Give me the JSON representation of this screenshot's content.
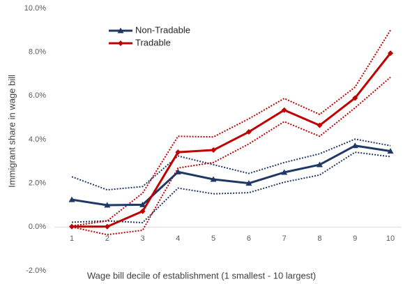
{
  "chart_data": {
    "type": "line",
    "y_label": "Immigrant share in wage bill",
    "x_label": "Wage bill decile of establishment (1 smallest - 10 largest)",
    "categories": [
      "1",
      "2",
      "3",
      "4",
      "5",
      "6",
      "7",
      "8",
      "9",
      "10"
    ],
    "ylim": [
      -2,
      10
    ],
    "yticks": [
      {
        "value": -2,
        "label": "-2.0%"
      },
      {
        "value": 0,
        "label": "0.0%"
      },
      {
        "value": 2,
        "label": "2.0%"
      },
      {
        "value": 4,
        "label": "4.0%"
      },
      {
        "value": 6,
        "label": "6.0%"
      },
      {
        "value": 8,
        "label": "8.0%"
      },
      {
        "value": 10,
        "label": "10.0%"
      }
    ],
    "grid": false,
    "legend": "upper-left",
    "series": [
      {
        "color": "#1f3864",
        "style": "dotted",
        "values": [
          2.3,
          1.7,
          1.85,
          3.25,
          2.85,
          2.45,
          2.95,
          3.35,
          4.02,
          3.72
        ]
      },
      {
        "color": "#1f3864",
        "style": "dotted",
        "values": [
          0.22,
          0.28,
          0.2,
          1.78,
          1.52,
          1.57,
          2.05,
          2.38,
          3.42,
          3.22
        ]
      },
      {
        "color": "#c00000",
        "style": "dotted",
        "values": [
          0.05,
          0.28,
          1.55,
          4.15,
          4.12,
          4.95,
          5.88,
          5.15,
          6.4,
          9.0
        ]
      },
      {
        "color": "#c00000",
        "style": "dotted",
        "values": [
          0.0,
          -0.35,
          -0.15,
          2.7,
          2.95,
          3.8,
          4.82,
          4.15,
          5.45,
          6.85
        ]
      },
      {
        "name": "Non-Tradable",
        "color": "#1f3864",
        "style": "solid",
        "marker": "triangle",
        "values": [
          1.25,
          1.0,
          1.02,
          2.52,
          2.18,
          2.0,
          2.5,
          2.85,
          3.72,
          3.47
        ]
      },
      {
        "name": "Tradable",
        "color": "#c00000",
        "style": "solid",
        "marker": "diamond",
        "values": [
          0.02,
          0.02,
          0.72,
          3.42,
          3.52,
          4.35,
          5.35,
          4.65,
          5.9,
          7.95
        ]
      }
    ]
  }
}
